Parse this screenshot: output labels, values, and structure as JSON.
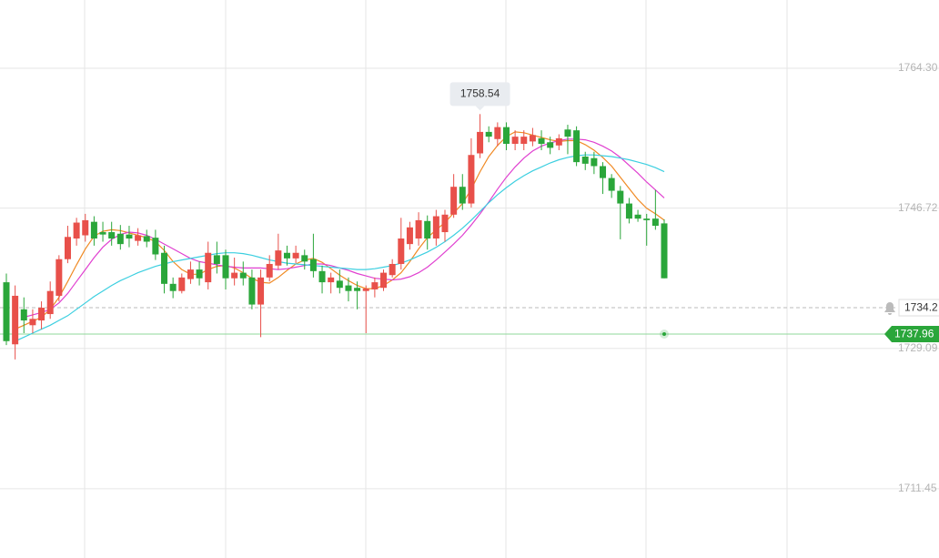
{
  "chart_data": {
    "type": "candlestick",
    "up_color": "#e8504a",
    "down_color": "#2aa63a",
    "open": [
      1737.4,
      1729.6,
      1734.0,
      1732.0,
      1732.6,
      1733.4,
      1735.7,
      1740.3,
      1742.9,
      1743.3,
      1745.0,
      1743.7,
      1743.7,
      1743.5,
      1743.4,
      1742.6,
      1743.2,
      1743.0,
      1741.1,
      1737.2,
      1736.3,
      1737.8,
      1739.0,
      1737.4,
      1740.8,
      1740.8,
      1737.9,
      1738.6,
      1738.0,
      1734.6,
      1738.0,
      1739.5,
      1741.1,
      1740.4,
      1740.8,
      1740.3,
      1738.8,
      1737.4,
      1737.6,
      1737.0,
      1736.7,
      1736.3,
      1736.5,
      1736.7,
      1738.3,
      1739.7,
      1742.2,
      1742.9,
      1745.1,
      1742.9,
      1743.7,
      1745.9,
      1749.4,
      1747.3,
      1753.6,
      1756.3,
      1755.4,
      1756.9,
      1754.8,
      1754.8,
      1755.1,
      1755.5,
      1755.0,
      1754.6,
      1756.6,
      1756.5,
      1753.2,
      1753.0,
      1752.0,
      1750.5,
      1748.9,
      1747.3,
      1745.9,
      1745.4,
      1745.4,
      1744.8
    ],
    "high": [
      1738.5,
      1737.0,
      1735.5,
      1734.0,
      1735.0,
      1737.5,
      1740.8,
      1744.5,
      1745.5,
      1746.0,
      1745.7,
      1745.0,
      1745.0,
      1744.6,
      1744.5,
      1744.2,
      1744.0,
      1744.0,
      1742.0,
      1738.0,
      1738.5,
      1740.0,
      1740.0,
      1742.5,
      1742.5,
      1741.5,
      1740.5,
      1740.0,
      1739.0,
      1739.0,
      1740.8,
      1743.5,
      1742.0,
      1742.0,
      1741.5,
      1743.5,
      1739.5,
      1738.6,
      1739.0,
      1738.0,
      1737.5,
      1737.0,
      1738.0,
      1739.0,
      1740.3,
      1745.5,
      1745.0,
      1746.2,
      1745.8,
      1746.5,
      1746.5,
      1751.0,
      1751.0,
      1755.5,
      1758.54,
      1757.0,
      1757.5,
      1757.5,
      1756.5,
      1756.5,
      1756.8,
      1756.5,
      1755.7,
      1756.0,
      1757.2,
      1757.0,
      1753.8,
      1753.8,
      1752.5,
      1751.0,
      1749.5,
      1748.0,
      1746.5,
      1746.0,
      1749.0,
      1745.3
    ],
    "low": [
      1729.5,
      1727.7,
      1731.0,
      1731.0,
      1731.5,
      1732.8,
      1735.0,
      1739.8,
      1742.0,
      1742.5,
      1742.0,
      1742.5,
      1742.0,
      1741.5,
      1741.8,
      1742.0,
      1741.8,
      1740.2,
      1736.0,
      1735.4,
      1736.0,
      1737.2,
      1737.0,
      1736.5,
      1738.5,
      1736.5,
      1737.0,
      1737.0,
      1734.0,
      1730.5,
      1737.5,
      1739.0,
      1739.5,
      1739.8,
      1739.0,
      1738.0,
      1736.0,
      1736.0,
      1736.0,
      1735.0,
      1734.0,
      1731.0,
      1735.5,
      1736.3,
      1738.0,
      1739.0,
      1741.5,
      1742.0,
      1741.5,
      1742.0,
      1742.5,
      1745.5,
      1746.5,
      1746.8,
      1753.0,
      1755.0,
      1754.5,
      1754.0,
      1754.0,
      1754.0,
      1754.5,
      1754.0,
      1753.5,
      1754.0,
      1753.5,
      1752.0,
      1751.5,
      1751.0,
      1748.5,
      1748.0,
      1742.8,
      1744.8,
      1745.0,
      1742.0,
      1744.0,
      1737.9
    ],
    "close": [
      1730.0,
      1735.7,
      1732.6,
      1732.8,
      1734.2,
      1736.3,
      1740.3,
      1743.1,
      1744.9,
      1745.2,
      1742.9,
      1743.4,
      1742.9,
      1742.2,
      1742.9,
      1743.3,
      1742.5,
      1740.9,
      1737.2,
      1736.3,
      1738.0,
      1739.0,
      1737.9,
      1741.1,
      1739.7,
      1737.9,
      1738.6,
      1737.9,
      1734.6,
      1738.0,
      1739.7,
      1741.4,
      1740.4,
      1741.1,
      1740.0,
      1738.8,
      1737.4,
      1738.0,
      1736.7,
      1736.3,
      1736.3,
      1736.6,
      1737.4,
      1738.6,
      1739.7,
      1742.9,
      1744.3,
      1745.2,
      1742.9,
      1745.7,
      1745.9,
      1749.4,
      1747.3,
      1753.4,
      1756.3,
      1755.7,
      1756.9,
      1754.8,
      1755.7,
      1755.7,
      1755.9,
      1754.8,
      1754.3,
      1755.5,
      1755.7,
      1752.5,
      1752.3,
      1752.0,
      1750.5,
      1748.9,
      1747.3,
      1745.4,
      1745.4,
      1745.2,
      1744.5,
      1737.9
    ],
    "series": [
      {
        "color": "#f08a24",
        "values": [
          null,
          1731.5,
          1732.0,
          1732.5,
          1733.0,
          1734.0,
          1735.5,
          1737.5,
          1739.6,
          1741.6,
          1743.2,
          1743.8,
          1744.0,
          1743.9,
          1743.6,
          1743.3,
          1743.0,
          1742.5,
          1741.4,
          1740.0,
          1739.0,
          1738.4,
          1738.4,
          1739.0,
          1739.4,
          1739.5,
          1739.2,
          1738.6,
          1737.9,
          1737.4,
          1737.3,
          1738.0,
          1738.9,
          1739.7,
          1740.2,
          1740.4,
          1739.9,
          1739.1,
          1738.3,
          1737.6,
          1737.0,
          1736.6,
          1736.6,
          1737.0,
          1737.7,
          1738.6,
          1740.0,
          1741.6,
          1743.0,
          1744.0,
          1744.9,
          1746.1,
          1747.3,
          1749.1,
          1751.3,
          1753.2,
          1754.6,
          1755.7,
          1756.3,
          1756.2,
          1755.9,
          1755.6,
          1755.3,
          1755.1,
          1755.2,
          1755.2,
          1754.7,
          1754.0,
          1753.1,
          1752.0,
          1750.6,
          1749.2,
          1747.8,
          1746.7,
          1746.0,
          1745.2
        ]
      },
      {
        "color": "#e040d0",
        "values": [
          null,
          null,
          1733.0,
          1733.3,
          1733.6,
          1734.0,
          1734.8,
          1736.0,
          1737.5,
          1739.0,
          1740.5,
          1741.8,
          1742.8,
          1743.4,
          1743.7,
          1743.6,
          1743.3,
          1742.8,
          1742.2,
          1741.6,
          1741.0,
          1740.4,
          1740.0,
          1739.8,
          1739.6,
          1739.4,
          1739.3,
          1739.2,
          1739.2,
          1739.2,
          1739.1,
          1739.0,
          1739.1,
          1739.3,
          1739.5,
          1739.7,
          1739.7,
          1739.5,
          1739.2,
          1738.9,
          1738.5,
          1738.2,
          1737.9,
          1737.8,
          1737.7,
          1737.8,
          1738.1,
          1738.6,
          1739.3,
          1740.2,
          1741.2,
          1742.2,
          1743.3,
          1744.6,
          1746.0,
          1747.5,
          1749.1,
          1750.6,
          1751.9,
          1753.0,
          1753.9,
          1754.5,
          1754.9,
          1755.2,
          1755.4,
          1755.4,
          1755.3,
          1755.0,
          1754.5,
          1753.9,
          1753.1,
          1752.1,
          1751.1,
          1750.0,
          1749.0,
          1748.0
        ]
      },
      {
        "color": "#3ccfe0",
        "values": [
          null,
          1730.0,
          1730.5,
          1731.0,
          1731.5,
          1732.0,
          1732.6,
          1733.2,
          1734.0,
          1734.8,
          1735.6,
          1736.3,
          1737.0,
          1737.6,
          1738.1,
          1738.6,
          1739.0,
          1739.4,
          1739.7,
          1740.0,
          1740.2,
          1740.4,
          1740.6,
          1740.8,
          1741.0,
          1741.1,
          1741.1,
          1741.0,
          1740.8,
          1740.5,
          1740.2,
          1740.0,
          1739.8,
          1739.7,
          1739.6,
          1739.5,
          1739.4,
          1739.3,
          1739.2,
          1739.1,
          1739.0,
          1739.0,
          1739.1,
          1739.3,
          1739.5,
          1739.8,
          1740.2,
          1740.7,
          1741.2,
          1741.8,
          1742.5,
          1743.3,
          1744.2,
          1745.2,
          1746.3,
          1747.4,
          1748.4,
          1749.3,
          1750.1,
          1750.8,
          1751.4,
          1751.9,
          1752.4,
          1752.8,
          1753.1,
          1753.3,
          1753.4,
          1753.4,
          1753.3,
          1753.2,
          1753.0,
          1752.8,
          1752.5,
          1752.2,
          1751.8,
          1751.3
        ]
      }
    ],
    "ylim": [
      1702.74,
      1772.88
    ],
    "yticks": [
      {
        "value": 1764.3,
        "label": "1764.30"
      },
      1746.72,
      1729.09,
      1711.45
    ],
    "grid": true,
    "current_price": 1737.96,
    "alert_price": 1734.2
  }
}
